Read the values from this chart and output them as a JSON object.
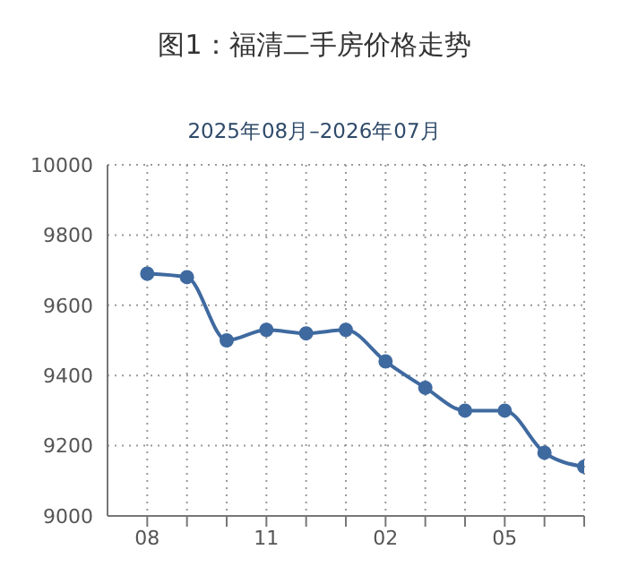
{
  "chart_data": {
    "type": "line",
    "title": "图1：福清二手房价格走势",
    "subtitle": "2025年08月–2026年07月",
    "categories": [
      "08",
      null,
      null,
      "11",
      null,
      null,
      "02",
      null,
      null,
      "05",
      null,
      null
    ],
    "series": [
      {
        "color": "#3f6aa0",
        "values": [
          9690,
          9680,
          9500,
          9530,
          9520,
          9530,
          9440,
          9365,
          9300,
          9300,
          9180,
          9140
        ]
      }
    ],
    "ylim": [
      9000,
      10000
    ],
    "yticks": [
      9000,
      9200,
      9400,
      9600,
      9800,
      10000
    ],
    "grid": true,
    "marker": "circle",
    "legend": false
  }
}
